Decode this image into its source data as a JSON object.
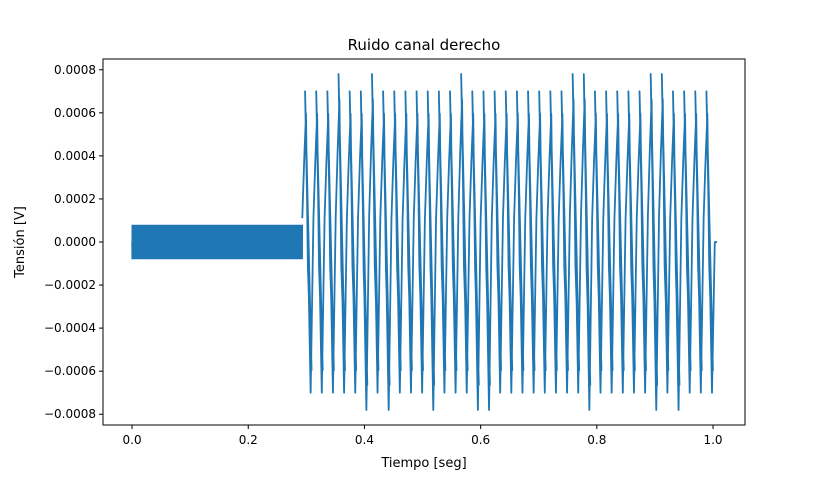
{
  "chart_data": {
    "type": "line",
    "title": "Ruido canal derecho",
    "xlabel": "Tiempo [seg]",
    "ylabel": "Tensión [V]",
    "xlim": [
      -0.05,
      1.055
    ],
    "ylim": [
      -0.00085,
      0.00085
    ],
    "x_ticks": [
      0.0,
      0.2,
      0.4,
      0.6,
      0.8,
      1.0
    ],
    "x_tick_labels": [
      "0.0",
      "0.2",
      "0.4",
      "0.6",
      "0.8",
      "1.0"
    ],
    "y_ticks": [
      -0.0008,
      -0.0006,
      -0.0004,
      -0.0002,
      0.0,
      0.0002,
      0.0004,
      0.0006,
      0.0008
    ],
    "y_tick_labels": [
      "−0.0008",
      "−0.0006",
      "−0.0004",
      "−0.0002",
      "0.0000",
      "0.0002",
      "0.0004",
      "0.0006",
      "0.0008"
    ],
    "grid": false,
    "series": [
      {
        "color": "#1f77b4",
        "segments": [
          {
            "x_start": 0.0,
            "x_end": 0.293,
            "amplitude": 8e-05,
            "description_free": true
          },
          {
            "x_start": 0.293,
            "x_end": 1.003,
            "amplitude_main": 0.0007,
            "amplitude_peak": 0.00078,
            "cycles": 37
          }
        ],
        "peaks_high_x": [
          0.36,
          0.415,
          0.57,
          0.75,
          0.77,
          0.89,
          0.915
        ],
        "peaks_low_x": [
          0.395,
          0.44,
          0.52,
          0.605,
          0.785,
          0.9,
          0.94
        ],
        "final_value_x": 1.003,
        "final_value_y": 0.0
      }
    ]
  }
}
